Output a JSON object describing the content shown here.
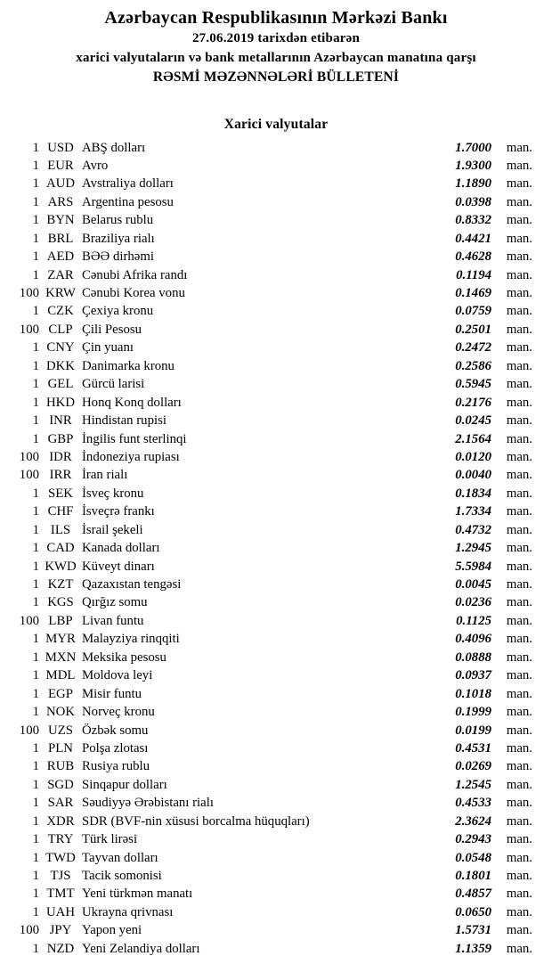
{
  "header": {
    "title": "Azərbaycan Respublikasının Mərkəzi Bankı",
    "date_line": "27.06.2019 tarixdən etibarən",
    "subtitle": "xarici valyutaların və bank metallarının Azərbaycan manatına qarşı",
    "bulletin_line": "RƏSMİ MƏZƏNNƏLƏRİ BÜLLETENİ"
  },
  "section": {
    "title": "Xarici valyutalar"
  },
  "table": {
    "unit_label": "man.",
    "rows": [
      {
        "qty": "1",
        "code": "USD",
        "name": "ABŞ dolları",
        "rate": "1.7000"
      },
      {
        "qty": "1",
        "code": "EUR",
        "name": "Avro",
        "rate": "1.9300"
      },
      {
        "qty": "1",
        "code": "AUD",
        "name": "Avstraliya dolları",
        "rate": "1.1890"
      },
      {
        "qty": "1",
        "code": "ARS",
        "name": "Argentina pesosu",
        "rate": "0.0398"
      },
      {
        "qty": "1",
        "code": "BYN",
        "name": "Belarus rublu",
        "rate": "0.8332"
      },
      {
        "qty": "1",
        "code": "BRL",
        "name": "Braziliya rialı",
        "rate": "0.4421"
      },
      {
        "qty": "1",
        "code": "AED",
        "name": "BƏƏ dirhəmi",
        "rate": "0.4628"
      },
      {
        "qty": "1",
        "code": "ZAR",
        "name": "Cənubi Afrika randı",
        "rate": "0.1194"
      },
      {
        "qty": "100",
        "code": "KRW",
        "name": "Cənubi Korea vonu",
        "rate": "0.1469"
      },
      {
        "qty": "1",
        "code": "CZK",
        "name": "Çexiya kronu",
        "rate": "0.0759"
      },
      {
        "qty": "100",
        "code": "CLP",
        "name": "Çili Pesosu",
        "rate": "0.2501"
      },
      {
        "qty": "1",
        "code": "CNY",
        "name": "Çin yuanı",
        "rate": "0.2472"
      },
      {
        "qty": "1",
        "code": "DKK",
        "name": "Danimarka kronu",
        "rate": "0.2586"
      },
      {
        "qty": "1",
        "code": "GEL",
        "name": "Gürcü larisi",
        "rate": "0.5945"
      },
      {
        "qty": "1",
        "code": "HKD",
        "name": "Honq Konq dolları",
        "rate": "0.2176"
      },
      {
        "qty": "1",
        "code": "INR",
        "name": "Hindistan rupisi",
        "rate": "0.0245"
      },
      {
        "qty": "1",
        "code": "GBP",
        "name": "İngilis funt sterlinqi",
        "rate": "2.1564"
      },
      {
        "qty": "100",
        "code": "IDR",
        "name": "İndoneziya rupiası",
        "rate": "0.0120"
      },
      {
        "qty": "100",
        "code": "IRR",
        "name": "İran rialı",
        "rate": "0.0040"
      },
      {
        "qty": "1",
        "code": "SEK",
        "name": "İsveç kronu",
        "rate": "0.1834"
      },
      {
        "qty": "1",
        "code": "CHF",
        "name": "İsveçrə frankı",
        "rate": "1.7334"
      },
      {
        "qty": "1",
        "code": "ILS",
        "name": "İsrail şekeli",
        "rate": "0.4732"
      },
      {
        "qty": "1",
        "code": "CAD",
        "name": "Kanada dolları",
        "rate": "1.2945"
      },
      {
        "qty": "1",
        "code": "KWD",
        "name": "Küveyt dinarı",
        "rate": "5.5984"
      },
      {
        "qty": "1",
        "code": "KZT",
        "name": "Qazaxıstan tengəsi",
        "rate": "0.0045"
      },
      {
        "qty": "1",
        "code": "KGS",
        "name": "Qırğız somu",
        "rate": "0.0236"
      },
      {
        "qty": "100",
        "code": "LBP",
        "name": "Livan funtu",
        "rate": "0.1125"
      },
      {
        "qty": "1",
        "code": "MYR",
        "name": "Malayziya rinqqiti",
        "rate": "0.4096"
      },
      {
        "qty": "1",
        "code": "MXN",
        "name": "Meksika pesosu",
        "rate": "0.0888"
      },
      {
        "qty": "1",
        "code": "MDL",
        "name": "Moldova leyi",
        "rate": "0.0937"
      },
      {
        "qty": "1",
        "code": "EGP",
        "name": "Misir funtu",
        "rate": "0.1018"
      },
      {
        "qty": "1",
        "code": "NOK",
        "name": "Norveç kronu",
        "rate": "0.1999"
      },
      {
        "qty": "100",
        "code": "UZS",
        "name": "Özbək somu",
        "rate": "0.0199"
      },
      {
        "qty": "1",
        "code": "PLN",
        "name": "Polşa zlotası",
        "rate": "0.4531"
      },
      {
        "qty": "1",
        "code": "RUB",
        "name": "Rusiya rublu",
        "rate": "0.0269"
      },
      {
        "qty": "1",
        "code": "SGD",
        "name": "Sinqapur dolları",
        "rate": "1.2545"
      },
      {
        "qty": "1",
        "code": "SAR",
        "name": "Səudiyyə Ərəbistanı rialı",
        "rate": "0.4533"
      },
      {
        "qty": "1",
        "code": "XDR",
        "name": "SDR (BVF-nin xüsusi borcalma hüquqları)",
        "rate": "2.3624"
      },
      {
        "qty": "1",
        "code": "TRY",
        "name": "Türk lirəsi",
        "rate": "0.2943"
      },
      {
        "qty": "1",
        "code": "TWD",
        "name": "Tayvan dolları",
        "rate": "0.0548"
      },
      {
        "qty": "1",
        "code": "TJS",
        "name": "Tacik somonisi",
        "rate": "0.1801"
      },
      {
        "qty": "1",
        "code": "TMT",
        "name": "Yeni türkmən manatı",
        "rate": "0.4857"
      },
      {
        "qty": "1",
        "code": "UAH",
        "name": "Ukrayna qrivnası",
        "rate": "0.0650"
      },
      {
        "qty": "100",
        "code": "JPY",
        "name": "Yapon yeni",
        "rate": "1.5731"
      },
      {
        "qty": "1",
        "code": "NZD",
        "name": "Yeni Zelandiya dolları",
        "rate": "1.1359"
      }
    ]
  }
}
